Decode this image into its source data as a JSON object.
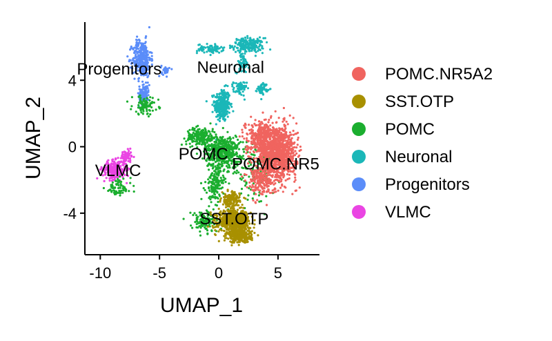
{
  "chart_data": {
    "type": "scatter",
    "xlabel": "UMAP_1",
    "ylabel": "UMAP_2",
    "xlim": [
      -11.3,
      8.5
    ],
    "ylim": [
      -6.5,
      7.5
    ],
    "x_ticks": [
      -10,
      -5,
      0,
      5
    ],
    "y_ticks": [
      -4,
      0,
      4
    ],
    "grid": false,
    "legend_position": "right",
    "legend": [
      "POMC.NR5A2",
      "SST.OTP",
      "POMC",
      "Neuronal",
      "Progenitors",
      "VLMC"
    ],
    "colors": {
      "POMC.NR5A2": "#F0645F",
      "SST.OTP": "#A89000",
      "POMC": "#1BAE2F",
      "Neuronal": "#1BB7B8",
      "Progenitors": "#5B8DF9",
      "VLMC": "#EA45E3"
    },
    "cluster_labels": [
      {
        "text": "POMC.NR5",
        "x": 4.8,
        "y": -1.1
      },
      {
        "text": "SST.OTP",
        "x": 1.3,
        "y": -4.4
      },
      {
        "text": "POMC",
        "x": -1.3,
        "y": -0.5
      },
      {
        "text": "Neuronal",
        "x": 1.0,
        "y": 4.7
      },
      {
        "text": "Progenitors",
        "x": -8.4,
        "y": 4.6
      },
      {
        "text": "VLMC",
        "x": -8.5,
        "y": -1.5
      }
    ],
    "series": [
      {
        "name": "POMC.NR5A2",
        "clusters": [
          {
            "cx": 4.9,
            "cy": -0.4,
            "sx": 1.5,
            "sy": 1.5,
            "n": 1100
          },
          {
            "cx": 3.6,
            "cy": 0.6,
            "sx": 1.2,
            "sy": 0.9,
            "n": 300
          },
          {
            "cx": 3.5,
            "cy": -2.0,
            "sx": 1.0,
            "sy": 0.8,
            "n": 200
          }
        ]
      },
      {
        "name": "SST.OTP",
        "clusters": [
          {
            "cx": 1.3,
            "cy": -4.5,
            "sx": 1.2,
            "sy": 0.6,
            "n": 700
          },
          {
            "cx": 1.8,
            "cy": -5.4,
            "sx": 0.9,
            "sy": 0.35,
            "n": 250
          },
          {
            "cx": 1.0,
            "cy": -3.2,
            "sx": 0.7,
            "sy": 0.4,
            "n": 150
          }
        ]
      },
      {
        "name": "POMC",
        "clusters": [
          {
            "cx": 0.3,
            "cy": -0.3,
            "sx": 1.3,
            "sy": 0.9,
            "n": 500
          },
          {
            "cx": -1.5,
            "cy": 0.6,
            "sx": 1.1,
            "sy": 0.5,
            "n": 200
          },
          {
            "cx": -1.2,
            "cy": -4.5,
            "sx": 1.0,
            "sy": 0.6,
            "n": 130
          },
          {
            "cx": -0.3,
            "cy": -2.3,
            "sx": 0.7,
            "sy": 0.9,
            "n": 150
          },
          {
            "cx": -6.2,
            "cy": 2.5,
            "sx": 1.0,
            "sy": 0.5,
            "n": 90
          },
          {
            "cx": -8.5,
            "cy": -2.5,
            "sx": 1.0,
            "sy": 0.5,
            "n": 70
          },
          {
            "cx": 3.0,
            "cy": -1.5,
            "sx": 1.8,
            "sy": 1.5,
            "n": 120
          }
        ]
      },
      {
        "name": "Neuronal",
        "clusters": [
          {
            "cx": 0.3,
            "cy": 2.5,
            "sx": 0.6,
            "sy": 0.9,
            "n": 300
          },
          {
            "cx": 2.5,
            "cy": 6.1,
            "sx": 1.2,
            "sy": 0.4,
            "n": 200
          },
          {
            "cx": -0.7,
            "cy": 5.9,
            "sx": 1.0,
            "sy": 0.25,
            "n": 80
          },
          {
            "cx": 3.7,
            "cy": 3.5,
            "sx": 0.4,
            "sy": 0.3,
            "n": 60
          },
          {
            "cx": 1.8,
            "cy": 3.5,
            "sx": 0.5,
            "sy": 0.4,
            "n": 60
          },
          {
            "cx": 2.0,
            "cy": 5.0,
            "sx": 0.5,
            "sy": 0.5,
            "n": 70
          }
        ]
      },
      {
        "name": "Progenitors",
        "clusters": [
          {
            "cx": -6.5,
            "cy": 5.3,
            "sx": 0.7,
            "sy": 1.0,
            "n": 350
          },
          {
            "cx": -6.3,
            "cy": 3.2,
            "sx": 0.4,
            "sy": 0.6,
            "n": 120
          },
          {
            "cx": -4.5,
            "cy": 4.6,
            "sx": 0.3,
            "sy": 0.3,
            "n": 30
          }
        ]
      },
      {
        "name": "VLMC",
        "clusters": [
          {
            "cx": -8.8,
            "cy": -1.4,
            "sx": 0.9,
            "sy": 0.5,
            "n": 250
          },
          {
            "cx": -7.8,
            "cy": -0.6,
            "sx": 0.4,
            "sy": 0.35,
            "n": 80
          }
        ]
      }
    ]
  }
}
